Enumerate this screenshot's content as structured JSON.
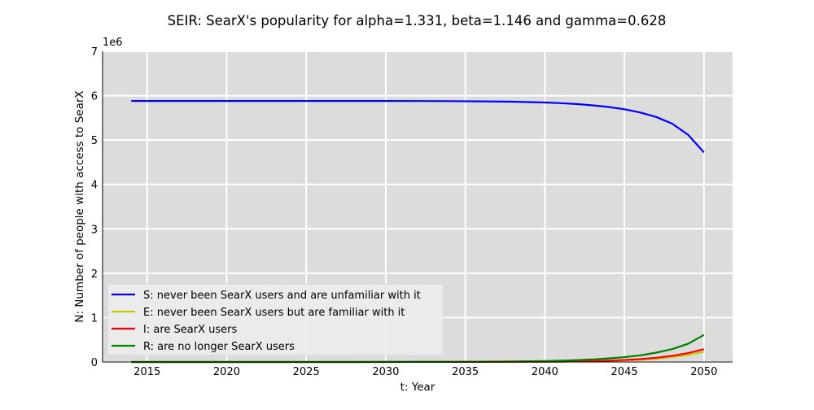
{
  "chart_data": {
    "type": "line",
    "title": "SEIR: SearX's popularity for alpha=1.331, beta=1.146 and gamma=0.628",
    "xlabel": "t: Year",
    "ylabel": "N: Number of people with access to SearX",
    "y_multiplier_label": "1e6",
    "xlim": [
      2012.2,
      2051.8
    ],
    "ylim": [
      0,
      7
    ],
    "x_ticks": [
      2015,
      2020,
      2025,
      2030,
      2035,
      2040,
      2045,
      2050
    ],
    "y_ticks": [
      0,
      1,
      2,
      3,
      4,
      5,
      6,
      7
    ],
    "grid": true,
    "background_color": "#dcdcdc",
    "grid_color": "#ffffff",
    "legend_position": "lower-left",
    "x": [
      2014,
      2016,
      2018,
      2020,
      2022,
      2024,
      2026,
      2028,
      2030,
      2032,
      2034,
      2036,
      2038,
      2040,
      2041,
      2042,
      2043,
      2044,
      2045,
      2046,
      2047,
      2048,
      2049,
      2050
    ],
    "series": [
      {
        "name": "S: never been SearX users and are unfamiliar with it",
        "color": "#0000ff",
        "values": [
          5.88,
          5.88,
          5.88,
          5.88,
          5.88,
          5.88,
          5.88,
          5.88,
          5.88,
          5.878,
          5.876,
          5.872,
          5.864,
          5.845,
          5.83,
          5.81,
          5.782,
          5.745,
          5.693,
          5.62,
          5.52,
          5.37,
          5.12,
          4.72
        ]
      },
      {
        "name": "E: never been SearX users but are familiar with it",
        "color": "#c8c800",
        "values": [
          0,
          0,
          0,
          0,
          0,
          0,
          0,
          0,
          0,
          0.001,
          0.001,
          0.002,
          0.003,
          0.006,
          0.008,
          0.012,
          0.018,
          0.026,
          0.037,
          0.053,
          0.076,
          0.11,
          0.16,
          0.23
        ]
      },
      {
        "name": "I: are SearX users",
        "color": "#ff0000",
        "values": [
          0,
          0,
          0,
          0,
          0,
          0,
          0,
          0,
          0,
          0.001,
          0.001,
          0.002,
          0.004,
          0.007,
          0.01,
          0.014,
          0.021,
          0.031,
          0.045,
          0.065,
          0.095,
          0.14,
          0.2,
          0.29
        ]
      },
      {
        "name": "R: are no longer SearX users",
        "color": "#008000",
        "values": [
          0,
          0,
          0,
          0,
          0,
          0,
          0,
          0,
          0.001,
          0.002,
          0.004,
          0.007,
          0.012,
          0.022,
          0.03,
          0.042,
          0.058,
          0.08,
          0.11,
          0.15,
          0.21,
          0.29,
          0.41,
          0.61
        ]
      }
    ]
  }
}
